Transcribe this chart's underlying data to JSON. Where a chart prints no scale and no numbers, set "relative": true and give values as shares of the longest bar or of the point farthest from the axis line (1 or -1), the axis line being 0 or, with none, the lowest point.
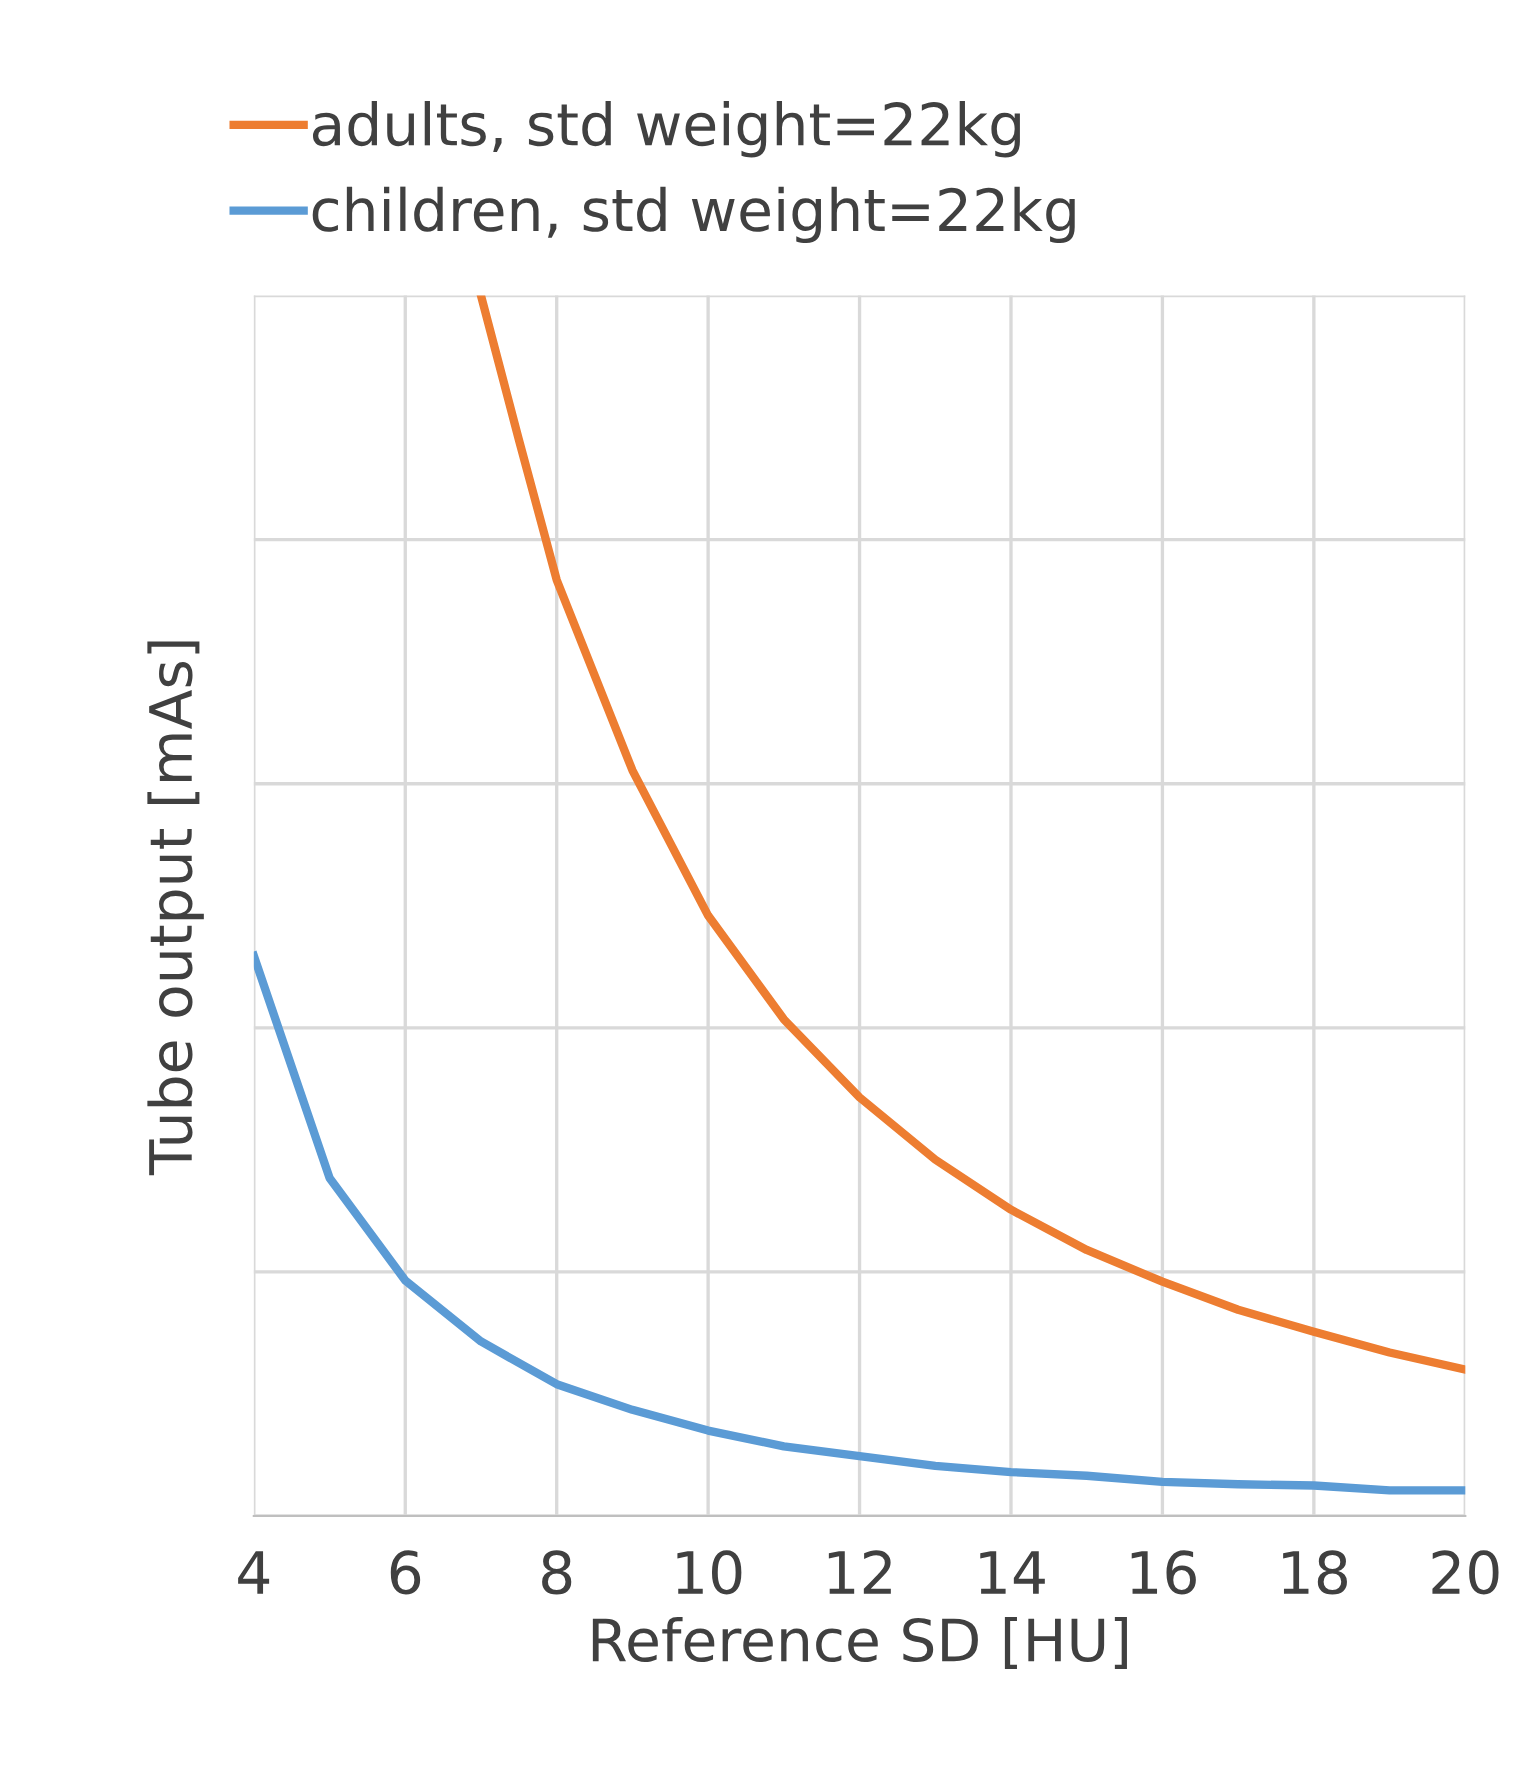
{
  "chart_data": {
    "type": "line",
    "xlabel": "Reference SD [HU]",
    "ylabel": "Tube output [mAs]",
    "relative": true,
    "xlim": [
      4,
      20
    ],
    "xticks": [
      4,
      6,
      8,
      10,
      12,
      14,
      16,
      18,
      20
    ],
    "tick_labels": "x",
    "grid": true,
    "legend": "top left",
    "marker": "none",
    "line_style": "solid",
    "series": [
      {
        "name": "adults, std weight=22kg",
        "color": "#ed7d31",
        "x": [
          7,
          7.5,
          8,
          9,
          10,
          11,
          12,
          13,
          14,
          15,
          16,
          17,
          18,
          19,
          20
        ],
        "values": [
          1.0,
          0.882,
          0.767,
          0.611,
          0.492,
          0.407,
          0.343,
          0.292,
          0.251,
          0.218,
          0.192,
          0.169,
          0.151,
          0.134,
          0.12
        ]
      },
      {
        "name": "children, std weight=22kg",
        "color": "#5b9bd5",
        "x": [
          4,
          5,
          6,
          7,
          8,
          9,
          10,
          11,
          12,
          13,
          14,
          15,
          16,
          17,
          18,
          19,
          20
        ],
        "values": [
          0.459,
          0.277,
          0.193,
          0.143,
          0.108,
          0.087,
          0.07,
          0.057,
          0.049,
          0.041,
          0.036,
          0.033,
          0.028,
          0.026,
          0.025,
          0.021,
          0.021
        ]
      }
    ]
  }
}
